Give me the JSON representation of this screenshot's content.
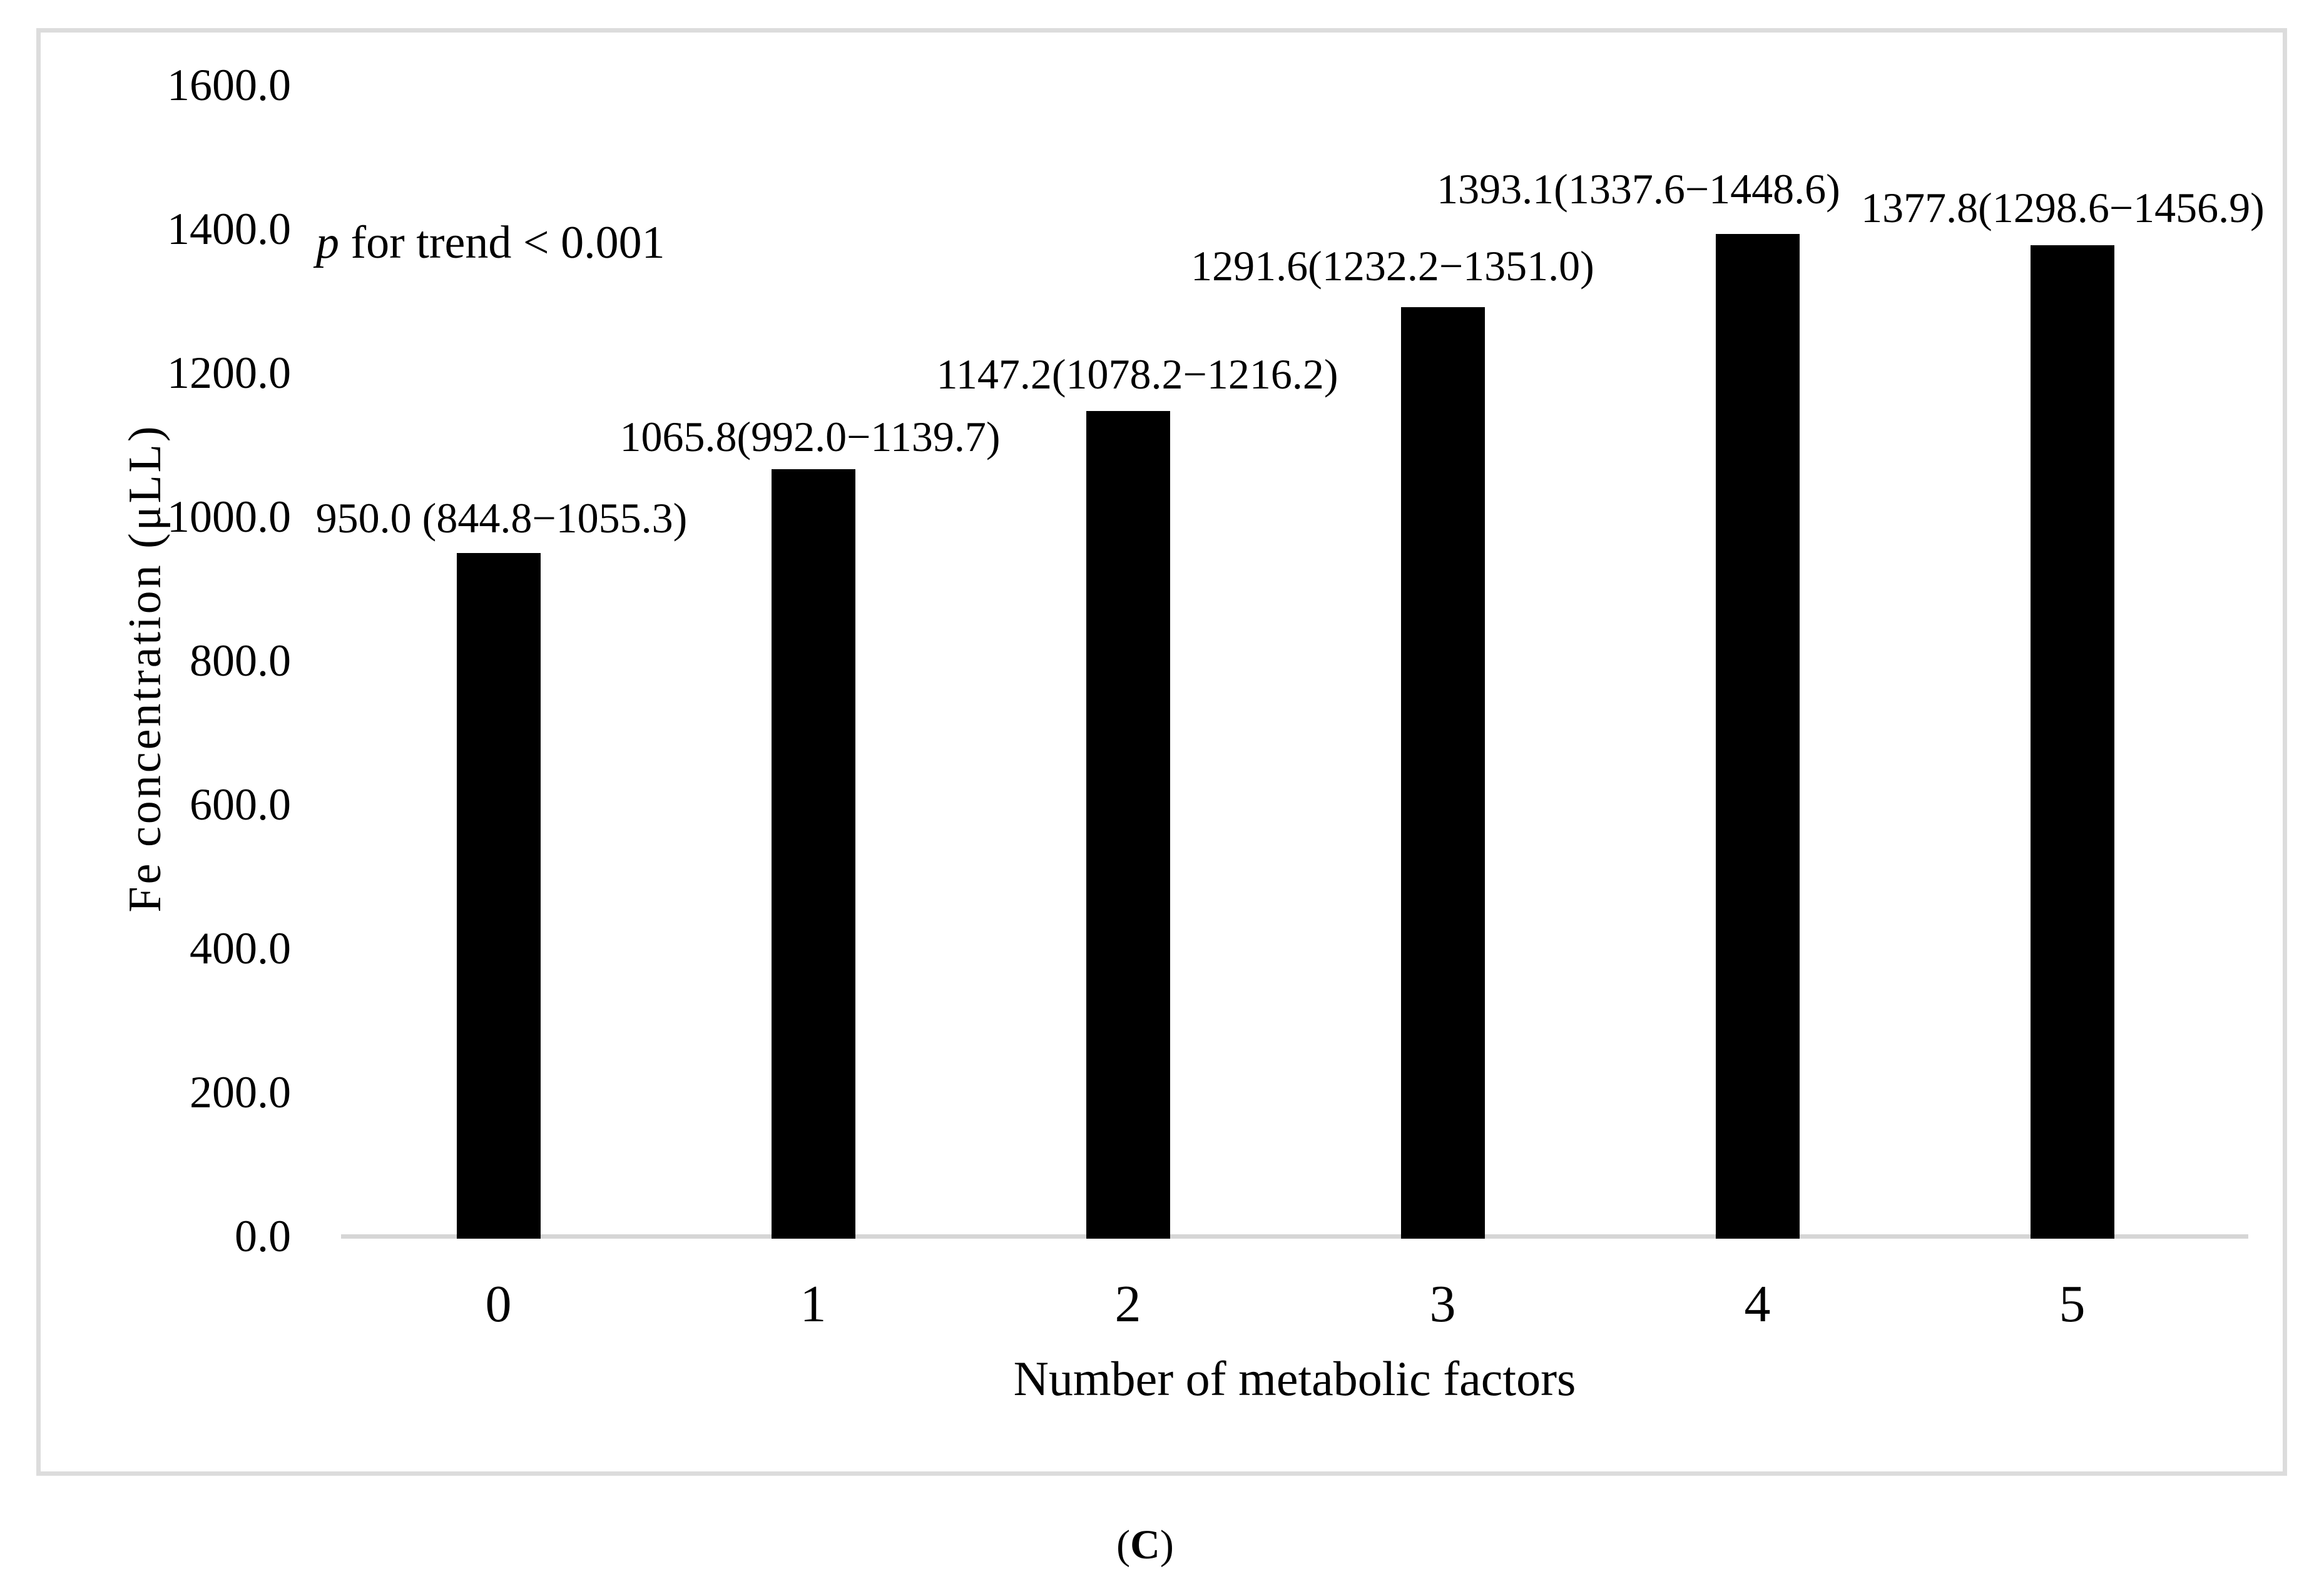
{
  "figure": {
    "panel_label_open": "(",
    "panel_label_letter": "C",
    "panel_label_close": ")"
  },
  "chart_data": {
    "type": "bar",
    "title": "",
    "xlabel": "Number of metabolic factors",
    "ylabel": "Fe concentration (μLL)",
    "categories": [
      "0",
      "1",
      "2",
      "3",
      "4",
      "5"
    ],
    "values": [
      950.0,
      1065.8,
      1147.2,
      1291.6,
      1393.1,
      1377.8
    ],
    "ci_low": [
      844.8,
      992.0,
      1078.2,
      1232.2,
      1337.6,
      1298.6
    ],
    "ci_high": [
      1055.3,
      1139.7,
      1216.2,
      1351.0,
      1448.6,
      1456.9
    ],
    "data_labels": [
      "950.0 (844.8−1055.3)",
      "1065.8(992.0−1139.7)",
      "1147.2(1078.2−1216.2)",
      "1291.6(1232.2−1351.0)",
      "1393.1(1337.6−1448.6)",
      "1377.8(1298.6−1456.9)"
    ],
    "annotation": {
      "p_italic": "p",
      "rest": " for trend < 0.001"
    },
    "y_ticks": [
      "0.0",
      "200.0",
      "400.0",
      "600.0",
      "800.0",
      "1000.0",
      "1200.0",
      "1400.0",
      "1600.0"
    ],
    "ylim": [
      0,
      1600
    ],
    "bar_color": "#000000",
    "axis_color": "#d6d6d6",
    "grid": "off",
    "legend": "none"
  }
}
